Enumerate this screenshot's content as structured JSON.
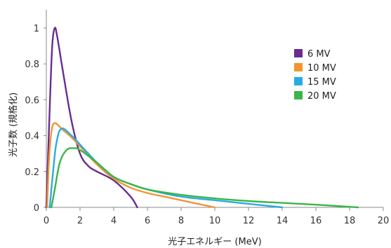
{
  "chart_data": {
    "type": "line",
    "xlabel": "光子エネルギー (MeV)",
    "ylabel": "光子数 (規格化)",
    "xlim": [
      0,
      20
    ],
    "ylim": [
      0,
      1
    ],
    "xticks": [
      "0",
      "2",
      "4",
      "6",
      "8",
      "10",
      "12",
      "14",
      "16",
      "18",
      "20"
    ],
    "yticks": [
      "0",
      "0.2",
      "0.4",
      "0.6",
      "0.8",
      "1"
    ],
    "grid": false,
    "legend_position": "top-right",
    "series": [
      {
        "name": "6 MV",
        "color": "#6a2c91",
        "points": [
          [
            0,
            0
          ],
          [
            0.2,
            0.55
          ],
          [
            0.35,
            0.9
          ],
          [
            0.5,
            1.0
          ],
          [
            0.65,
            0.95
          ],
          [
            1.0,
            0.75
          ],
          [
            1.5,
            0.48
          ],
          [
            2.0,
            0.3
          ],
          [
            2.5,
            0.23
          ],
          [
            3.0,
            0.2
          ],
          [
            4.0,
            0.15
          ],
          [
            5.0,
            0.06
          ],
          [
            5.4,
            0.0
          ]
        ]
      },
      {
        "name": "10 MV",
        "color": "#f0962f",
        "points": [
          [
            0.05,
            0
          ],
          [
            0.15,
            0.25
          ],
          [
            0.3,
            0.42
          ],
          [
            0.5,
            0.47
          ],
          [
            1.0,
            0.43
          ],
          [
            1.5,
            0.39
          ],
          [
            2.0,
            0.34
          ],
          [
            3.0,
            0.24
          ],
          [
            4.0,
            0.16
          ],
          [
            5.0,
            0.11
          ],
          [
            6.0,
            0.08
          ],
          [
            7.0,
            0.06
          ],
          [
            8.0,
            0.04
          ],
          [
            9.0,
            0.02
          ],
          [
            10.0,
            0.0
          ]
        ]
      },
      {
        "name": "15 MV",
        "color": "#29abe2",
        "points": [
          [
            0.2,
            0
          ],
          [
            0.4,
            0.2
          ],
          [
            0.6,
            0.36
          ],
          [
            0.9,
            0.44
          ],
          [
            1.5,
            0.4
          ],
          [
            2.0,
            0.35
          ],
          [
            3.0,
            0.25
          ],
          [
            4.0,
            0.17
          ],
          [
            5.0,
            0.13
          ],
          [
            6.0,
            0.1
          ],
          [
            8.0,
            0.06
          ],
          [
            10.0,
            0.04
          ],
          [
            12.0,
            0.02
          ],
          [
            14.0,
            0.0
          ]
        ]
      },
      {
        "name": "20 MV",
        "color": "#3cb44a",
        "points": [
          [
            0.3,
            0
          ],
          [
            0.5,
            0.1
          ],
          [
            0.8,
            0.25
          ],
          [
            1.2,
            0.32
          ],
          [
            1.6,
            0.33
          ],
          [
            2.0,
            0.32
          ],
          [
            3.0,
            0.25
          ],
          [
            4.0,
            0.17
          ],
          [
            5.0,
            0.13
          ],
          [
            6.0,
            0.1
          ],
          [
            8.0,
            0.07
          ],
          [
            10.0,
            0.05
          ],
          [
            12.0,
            0.035
          ],
          [
            14.0,
            0.025
          ],
          [
            16.0,
            0.015
          ],
          [
            18.5,
            0.0
          ]
        ]
      }
    ]
  }
}
